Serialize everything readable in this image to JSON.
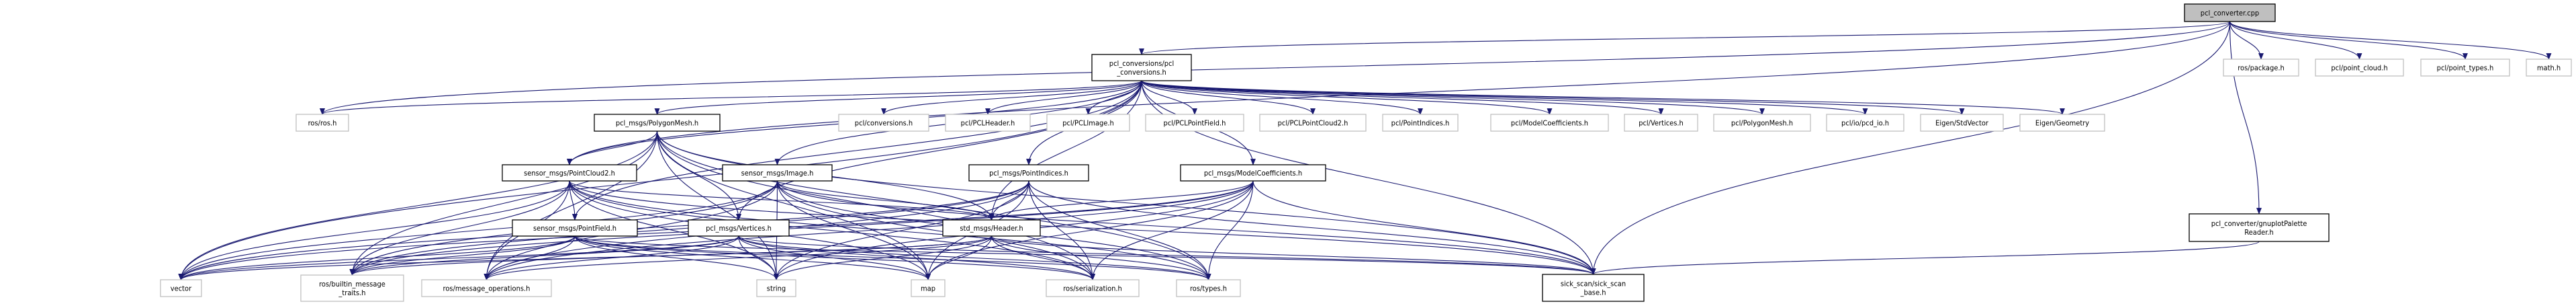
{
  "colors": {
    "edge": "#191970",
    "main_fill": "#bfbfbf",
    "documented_border": "#000000",
    "external_border": "#c0c0c0"
  },
  "nodes": [
    {
      "id": "cpp",
      "label": "pcl_converter.cpp",
      "kind": "main"
    },
    {
      "id": "conv",
      "label": "pcl_conversions/pcl\n_conversions.h",
      "kind": "documented"
    },
    {
      "id": "rosros",
      "label": "ros/ros.h",
      "kind": "external"
    },
    {
      "id": "polymesh",
      "label": "pcl_msgs/PolygonMesh.h",
      "kind": "documented"
    },
    {
      "id": "pclconv",
      "label": "pcl/conversions.h",
      "kind": "external"
    },
    {
      "id": "pclheader",
      "label": "pcl/PCLHeader.h",
      "kind": "external"
    },
    {
      "id": "pclimage",
      "label": "pcl/PCLImage.h",
      "kind": "external"
    },
    {
      "id": "pclpf",
      "label": "pcl/PCLPointField.h",
      "kind": "external"
    },
    {
      "id": "pclpc2",
      "label": "pcl/PCLPointCloud2.h",
      "kind": "external"
    },
    {
      "id": "pclpi",
      "label": "pcl/PointIndices.h",
      "kind": "external"
    },
    {
      "id": "pclmc",
      "label": "pcl/ModelCoefficients.h",
      "kind": "external"
    },
    {
      "id": "pclvert",
      "label": "pcl/Vertices.h",
      "kind": "external"
    },
    {
      "id": "pclpm",
      "label": "pcl/PolygonMesh.h",
      "kind": "external"
    },
    {
      "id": "pcdio",
      "label": "pcl/io/pcd_io.h",
      "kind": "external"
    },
    {
      "id": "eigstd",
      "label": "Eigen/StdVector",
      "kind": "external"
    },
    {
      "id": "eiggeo",
      "label": "Eigen/Geometry",
      "kind": "external"
    },
    {
      "id": "rospkg",
      "label": "ros/package.h",
      "kind": "external"
    },
    {
      "id": "pcloud",
      "label": "pcl/point_cloud.h",
      "kind": "external"
    },
    {
      "id": "ptypes",
      "label": "pcl/point_types.h",
      "kind": "external"
    },
    {
      "id": "math",
      "label": "math.h",
      "kind": "external"
    },
    {
      "id": "pc2",
      "label": "sensor_msgs/PointCloud2.h",
      "kind": "documented"
    },
    {
      "id": "image",
      "label": "sensor_msgs/Image.h",
      "kind": "documented"
    },
    {
      "id": "pindices",
      "label": "pcl_msgs/PointIndices.h",
      "kind": "documented"
    },
    {
      "id": "modelcoef",
      "label": "pcl_msgs/ModelCoefficients.h",
      "kind": "documented"
    },
    {
      "id": "pointfield",
      "label": "sensor_msgs/PointField.h",
      "kind": "documented"
    },
    {
      "id": "vertices",
      "label": "pcl_msgs/Vertices.h",
      "kind": "documented"
    },
    {
      "id": "header",
      "label": "std_msgs/Header.h",
      "kind": "documented"
    },
    {
      "id": "gnuplot",
      "label": "pcl_converter/gnuplotPalette\nReader.h",
      "kind": "documented"
    },
    {
      "id": "vector",
      "label": "vector",
      "kind": "external"
    },
    {
      "id": "builtin",
      "label": "ros/builtin_message\n_traits.h",
      "kind": "external"
    },
    {
      "id": "msgops",
      "label": "ros/message_operations.h",
      "kind": "external"
    },
    {
      "id": "string",
      "label": "string",
      "kind": "external"
    },
    {
      "id": "map",
      "label": "map",
      "kind": "external"
    },
    {
      "id": "serial",
      "label": "ros/serialization.h",
      "kind": "external"
    },
    {
      "id": "types",
      "label": "ros/types.h",
      "kind": "external"
    },
    {
      "id": "sick",
      "label": "sick_scan/sick_scan\n_base.h",
      "kind": "documented"
    }
  ],
  "edges": [
    [
      "cpp",
      "conv"
    ],
    [
      "cpp",
      "rosros"
    ],
    [
      "cpp",
      "pc2"
    ],
    [
      "cpp",
      "sick"
    ],
    [
      "cpp",
      "rospkg"
    ],
    [
      "cpp",
      "pcloud"
    ],
    [
      "cpp",
      "ptypes"
    ],
    [
      "cpp",
      "math"
    ],
    [
      "cpp",
      "gnuplot"
    ],
    [
      "conv",
      "rosros"
    ],
    [
      "conv",
      "polymesh"
    ],
    [
      "conv",
      "pclconv"
    ],
    [
      "conv",
      "pclheader"
    ],
    [
      "conv",
      "pclimage"
    ],
    [
      "conv",
      "pclpf"
    ],
    [
      "conv",
      "pclpc2"
    ],
    [
      "conv",
      "pclpi"
    ],
    [
      "conv",
      "pclmc"
    ],
    [
      "conv",
      "pclvert"
    ],
    [
      "conv",
      "pclpm"
    ],
    [
      "conv",
      "pcdio"
    ],
    [
      "conv",
      "eigstd"
    ],
    [
      "conv",
      "eiggeo"
    ],
    [
      "conv",
      "pc2"
    ],
    [
      "conv",
      "image"
    ],
    [
      "conv",
      "pindices"
    ],
    [
      "conv",
      "modelcoef"
    ],
    [
      "conv",
      "pointfield"
    ],
    [
      "conv",
      "vertices"
    ],
    [
      "conv",
      "header"
    ],
    [
      "conv",
      "vector"
    ],
    [
      "conv",
      "sick"
    ],
    [
      "polymesh",
      "pc2"
    ],
    [
      "polymesh",
      "vertices"
    ],
    [
      "polymesh",
      "header"
    ],
    [
      "polymesh",
      "vector"
    ],
    [
      "polymesh",
      "string"
    ],
    [
      "polymesh",
      "map"
    ],
    [
      "polymesh",
      "builtin"
    ],
    [
      "polymesh",
      "msgops"
    ],
    [
      "polymesh",
      "serial"
    ],
    [
      "polymesh",
      "types"
    ],
    [
      "polymesh",
      "sick"
    ],
    [
      "pc2",
      "pointfield"
    ],
    [
      "pc2",
      "header"
    ],
    [
      "pc2",
      "vector"
    ],
    [
      "pc2",
      "string"
    ],
    [
      "pc2",
      "map"
    ],
    [
      "pc2",
      "builtin"
    ],
    [
      "pc2",
      "msgops"
    ],
    [
      "pc2",
      "serial"
    ],
    [
      "pc2",
      "types"
    ],
    [
      "pc2",
      "sick"
    ],
    [
      "image",
      "header"
    ],
    [
      "image",
      "vector"
    ],
    [
      "image",
      "string"
    ],
    [
      "image",
      "map"
    ],
    [
      "image",
      "builtin"
    ],
    [
      "image",
      "msgops"
    ],
    [
      "image",
      "serial"
    ],
    [
      "image",
      "types"
    ],
    [
      "image",
      "sick"
    ],
    [
      "pindices",
      "header"
    ],
    [
      "pindices",
      "vector"
    ],
    [
      "pindices",
      "string"
    ],
    [
      "pindices",
      "map"
    ],
    [
      "pindices",
      "builtin"
    ],
    [
      "pindices",
      "msgops"
    ],
    [
      "pindices",
      "serial"
    ],
    [
      "pindices",
      "types"
    ],
    [
      "pindices",
      "sick"
    ],
    [
      "modelcoef",
      "header"
    ],
    [
      "modelcoef",
      "vector"
    ],
    [
      "modelcoef",
      "string"
    ],
    [
      "modelcoef",
      "map"
    ],
    [
      "modelcoef",
      "builtin"
    ],
    [
      "modelcoef",
      "msgops"
    ],
    [
      "modelcoef",
      "serial"
    ],
    [
      "modelcoef",
      "types"
    ],
    [
      "modelcoef",
      "sick"
    ],
    [
      "pointfield",
      "vector"
    ],
    [
      "pointfield",
      "string"
    ],
    [
      "pointfield",
      "map"
    ],
    [
      "pointfield",
      "builtin"
    ],
    [
      "pointfield",
      "msgops"
    ],
    [
      "pointfield",
      "serial"
    ],
    [
      "pointfield",
      "types"
    ],
    [
      "pointfield",
      "sick"
    ],
    [
      "vertices",
      "vector"
    ],
    [
      "vertices",
      "string"
    ],
    [
      "vertices",
      "map"
    ],
    [
      "vertices",
      "builtin"
    ],
    [
      "vertices",
      "msgops"
    ],
    [
      "vertices",
      "serial"
    ],
    [
      "vertices",
      "types"
    ],
    [
      "vertices",
      "sick"
    ],
    [
      "header",
      "vector"
    ],
    [
      "header",
      "string"
    ],
    [
      "header",
      "map"
    ],
    [
      "header",
      "builtin"
    ],
    [
      "header",
      "msgops"
    ],
    [
      "header",
      "serial"
    ],
    [
      "header",
      "types"
    ],
    [
      "header",
      "sick"
    ],
    [
      "gnuplot",
      "sick"
    ]
  ]
}
